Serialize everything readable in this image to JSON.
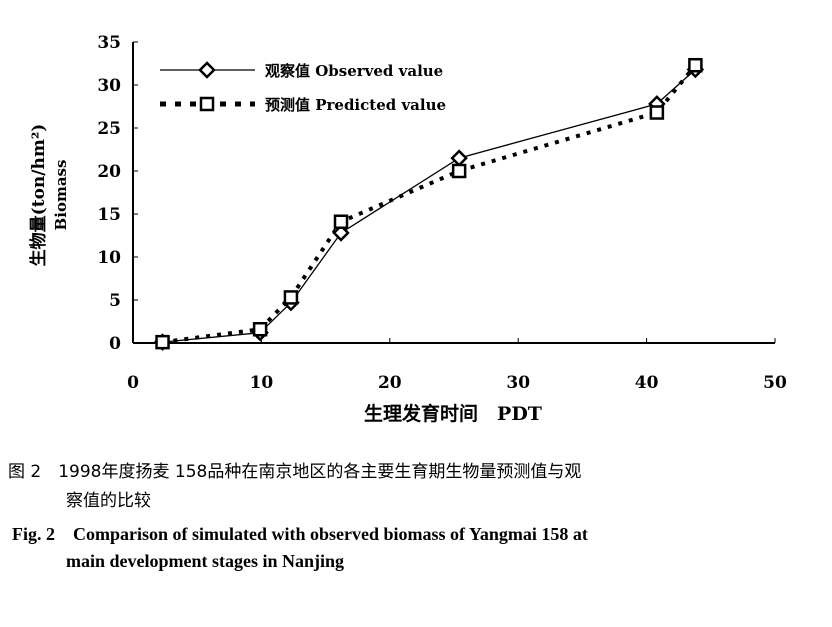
{
  "chart_data": {
    "type": "line",
    "xlabel": "生理发育时间　PDT",
    "ylabel_cn": "生物量(ton/hm²)",
    "ylabel_en": "Biomass",
    "xlim": [
      0,
      50
    ],
    "ylim": [
      0,
      35
    ],
    "xticks": [
      0,
      10,
      20,
      30,
      40,
      50
    ],
    "yticks": [
      0,
      5,
      10,
      15,
      20,
      25,
      30,
      35
    ],
    "legend_position": "top-left",
    "grid": false,
    "series": [
      {
        "name": "观察值 Observed value",
        "marker": "diamond",
        "style": "solid",
        "x": [
          2.3,
          9.9,
          12.3,
          16.2,
          25.4,
          40.8,
          43.8
        ],
        "y": [
          0.1,
          1.2,
          4.7,
          12.8,
          21.5,
          27.8,
          31.8
        ]
      },
      {
        "name": "预测值 Predicted value",
        "marker": "square",
        "style": "dotted",
        "x": [
          2.3,
          9.9,
          12.3,
          16.2,
          25.4,
          40.8,
          43.8
        ],
        "y": [
          0.1,
          1.6,
          5.3,
          14.1,
          20.0,
          26.8,
          32.3
        ]
      }
    ]
  },
  "caption": {
    "cn_line1": "图 2　1998年度扬麦 158品种在南京地区的各主要生育期生物量预测值与观",
    "cn_line2": "察值的比较",
    "en_line1": "Fig. 2　Comparison of simulated with observed biomass of Yangmai 158 at",
    "en_line2": "main development stages in Nanjing"
  }
}
